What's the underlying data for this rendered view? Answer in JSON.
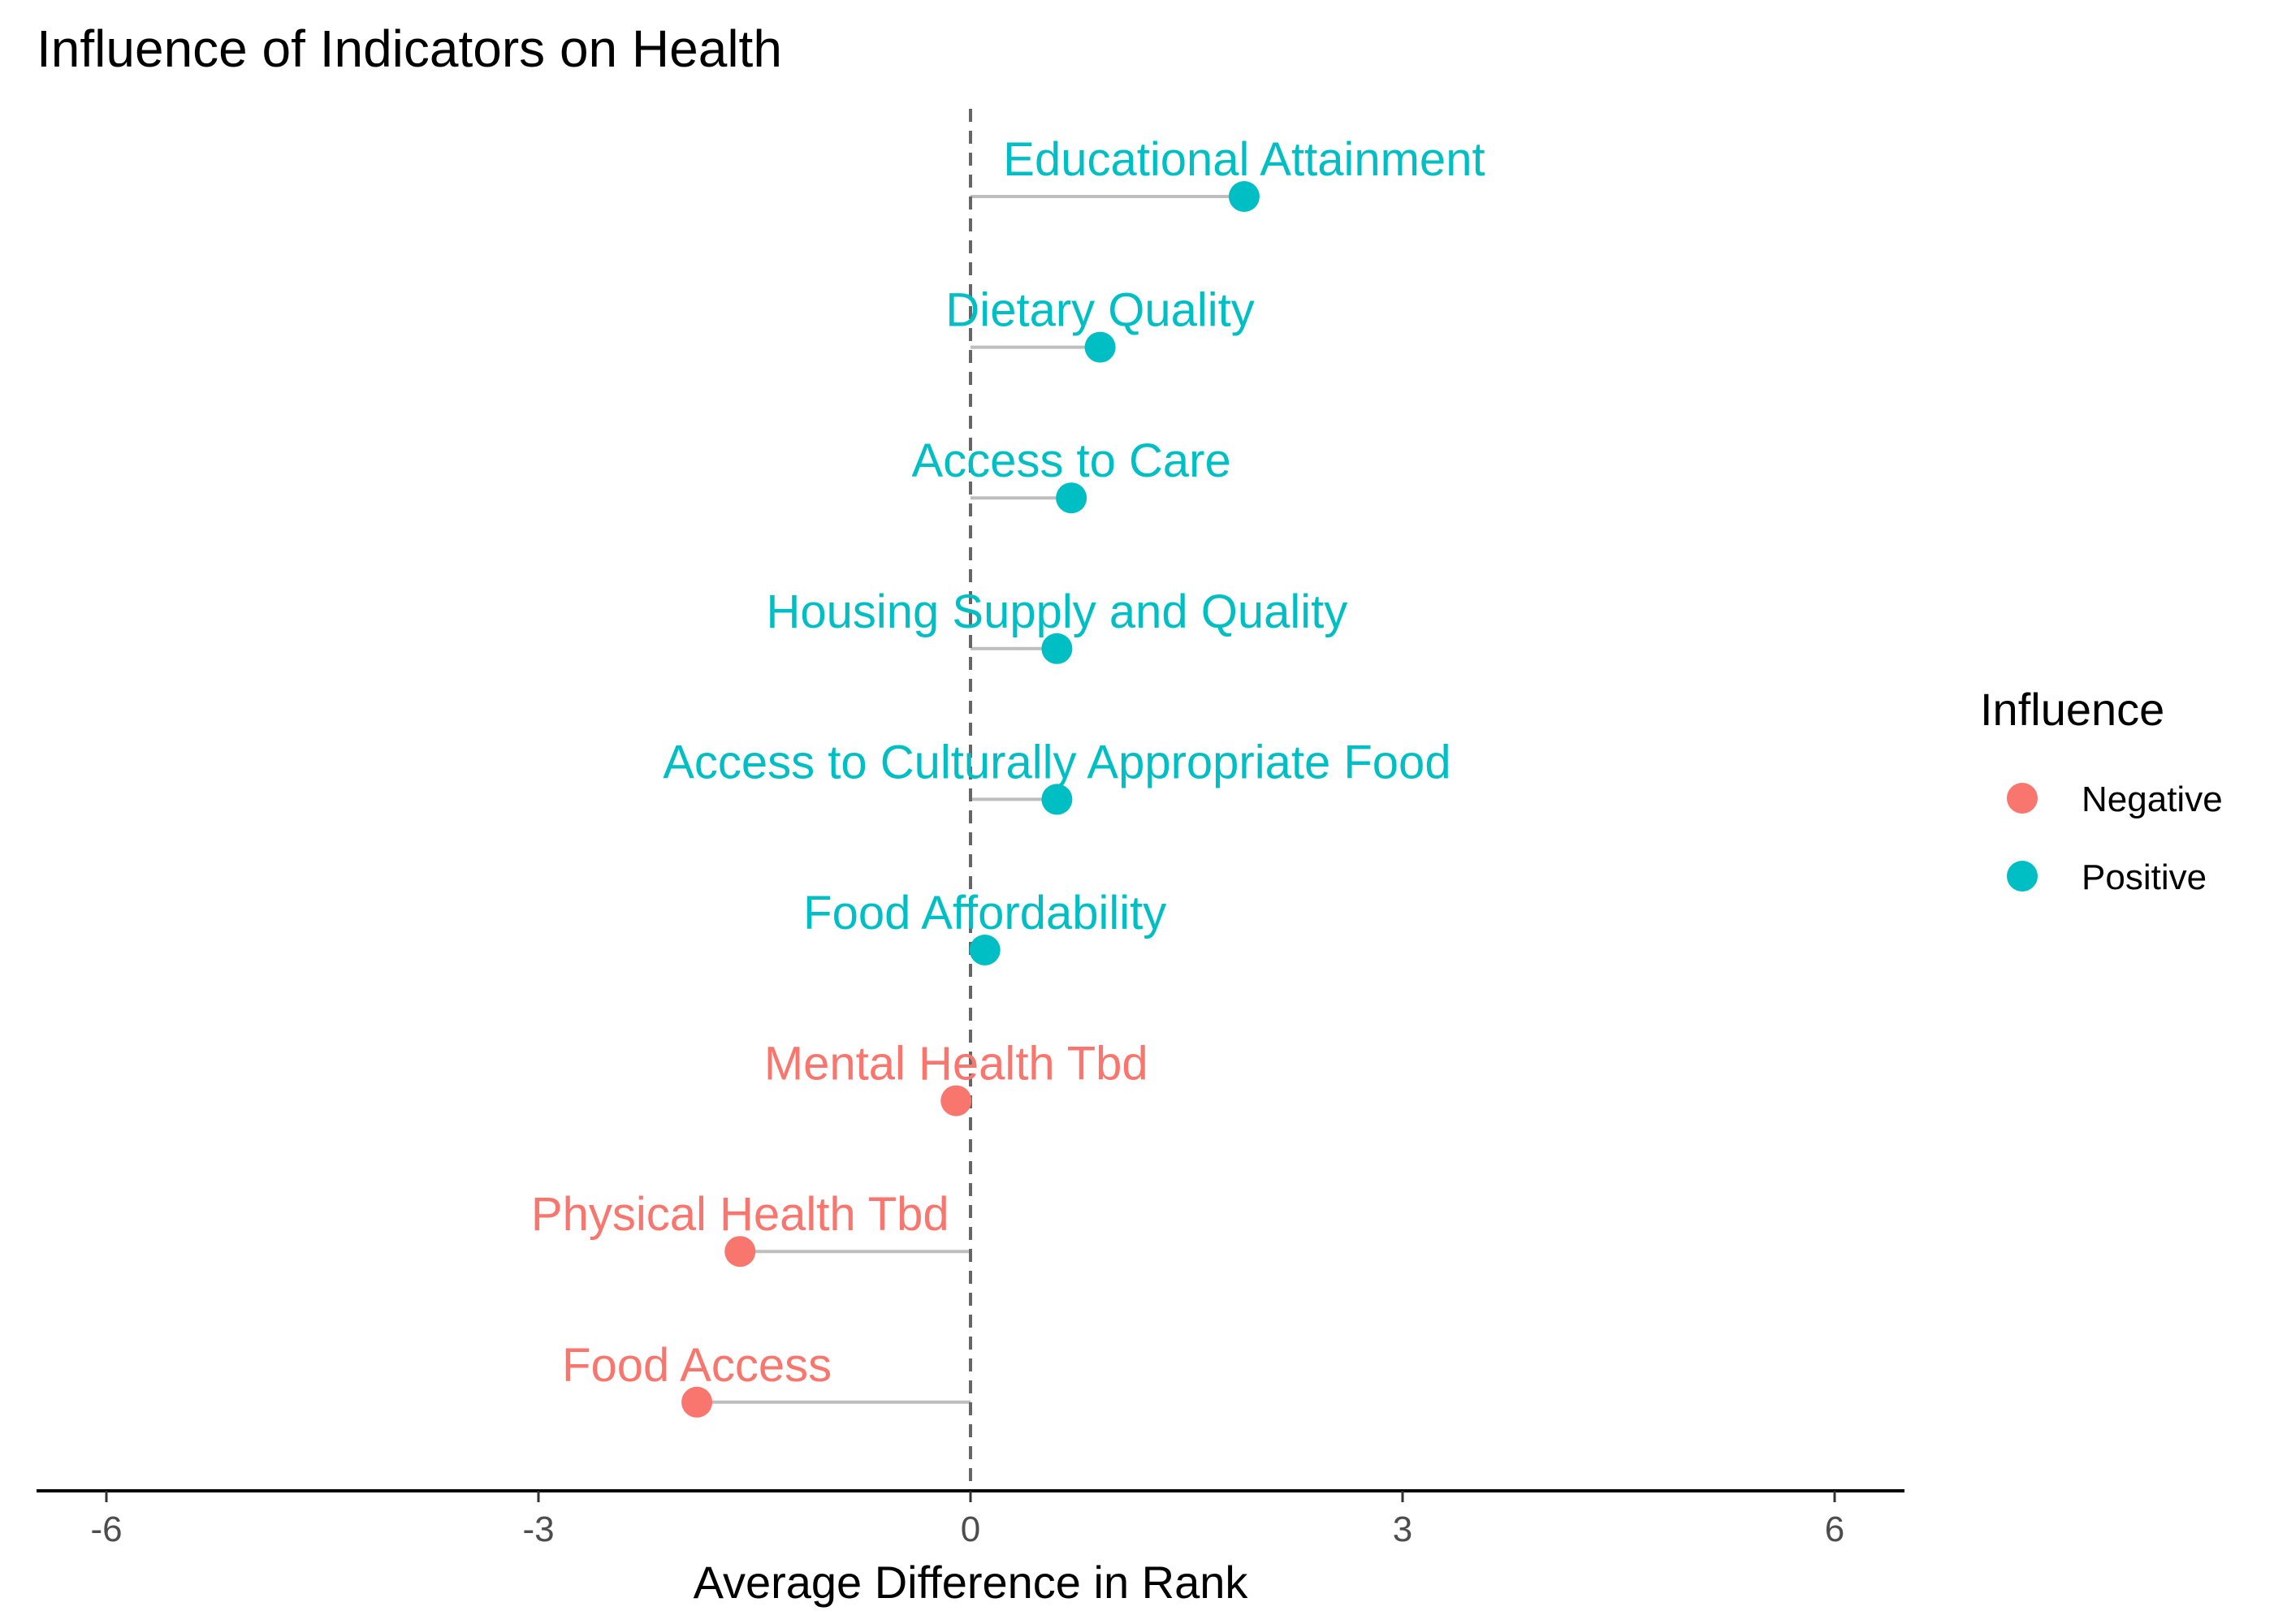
{
  "chart_data": {
    "type": "lollipop",
    "title": "Influence of Indicators on Health",
    "xlabel": "Average Difference in Rank",
    "ylabel": "",
    "xlim": [
      -6.5,
      6.5
    ],
    "x_ticks": [
      -6,
      -3,
      0,
      3,
      6
    ],
    "x_tick_labels": [
      "-6",
      "-3",
      "0",
      "3",
      "6"
    ],
    "reference_line": 0,
    "grid": false,
    "points": [
      {
        "label": "Educational Attainment",
        "value": 1.9,
        "influence": "Positive"
      },
      {
        "label": "Dietary Quality",
        "value": 0.9,
        "influence": "Positive"
      },
      {
        "label": "Access to Care",
        "value": 0.7,
        "influence": "Positive"
      },
      {
        "label": "Housing Supply and Quality",
        "value": 0.6,
        "influence": "Positive"
      },
      {
        "label": "Access to Culturally Appropriate Food",
        "value": 0.6,
        "influence": "Positive"
      },
      {
        "label": "Food Affordability",
        "value": 0.1,
        "influence": "Positive"
      },
      {
        "label": "Mental Health Tbd",
        "value": -0.1,
        "influence": "Negative"
      },
      {
        "label": "Physical Health Tbd",
        "value": -1.6,
        "influence": "Negative"
      },
      {
        "label": "Food Access",
        "value": -1.9,
        "influence": "Negative"
      }
    ],
    "legend": {
      "title": "Influence",
      "position": "right",
      "entries": [
        {
          "name": "Negative",
          "color": "#F8766D"
        },
        {
          "name": "Positive",
          "color": "#00BFC4"
        }
      ]
    },
    "colors": {
      "Negative": "#F8766D",
      "Positive": "#00BFC4",
      "stem": "#bebebe",
      "reference": "#666666",
      "axis": "#000000"
    }
  }
}
